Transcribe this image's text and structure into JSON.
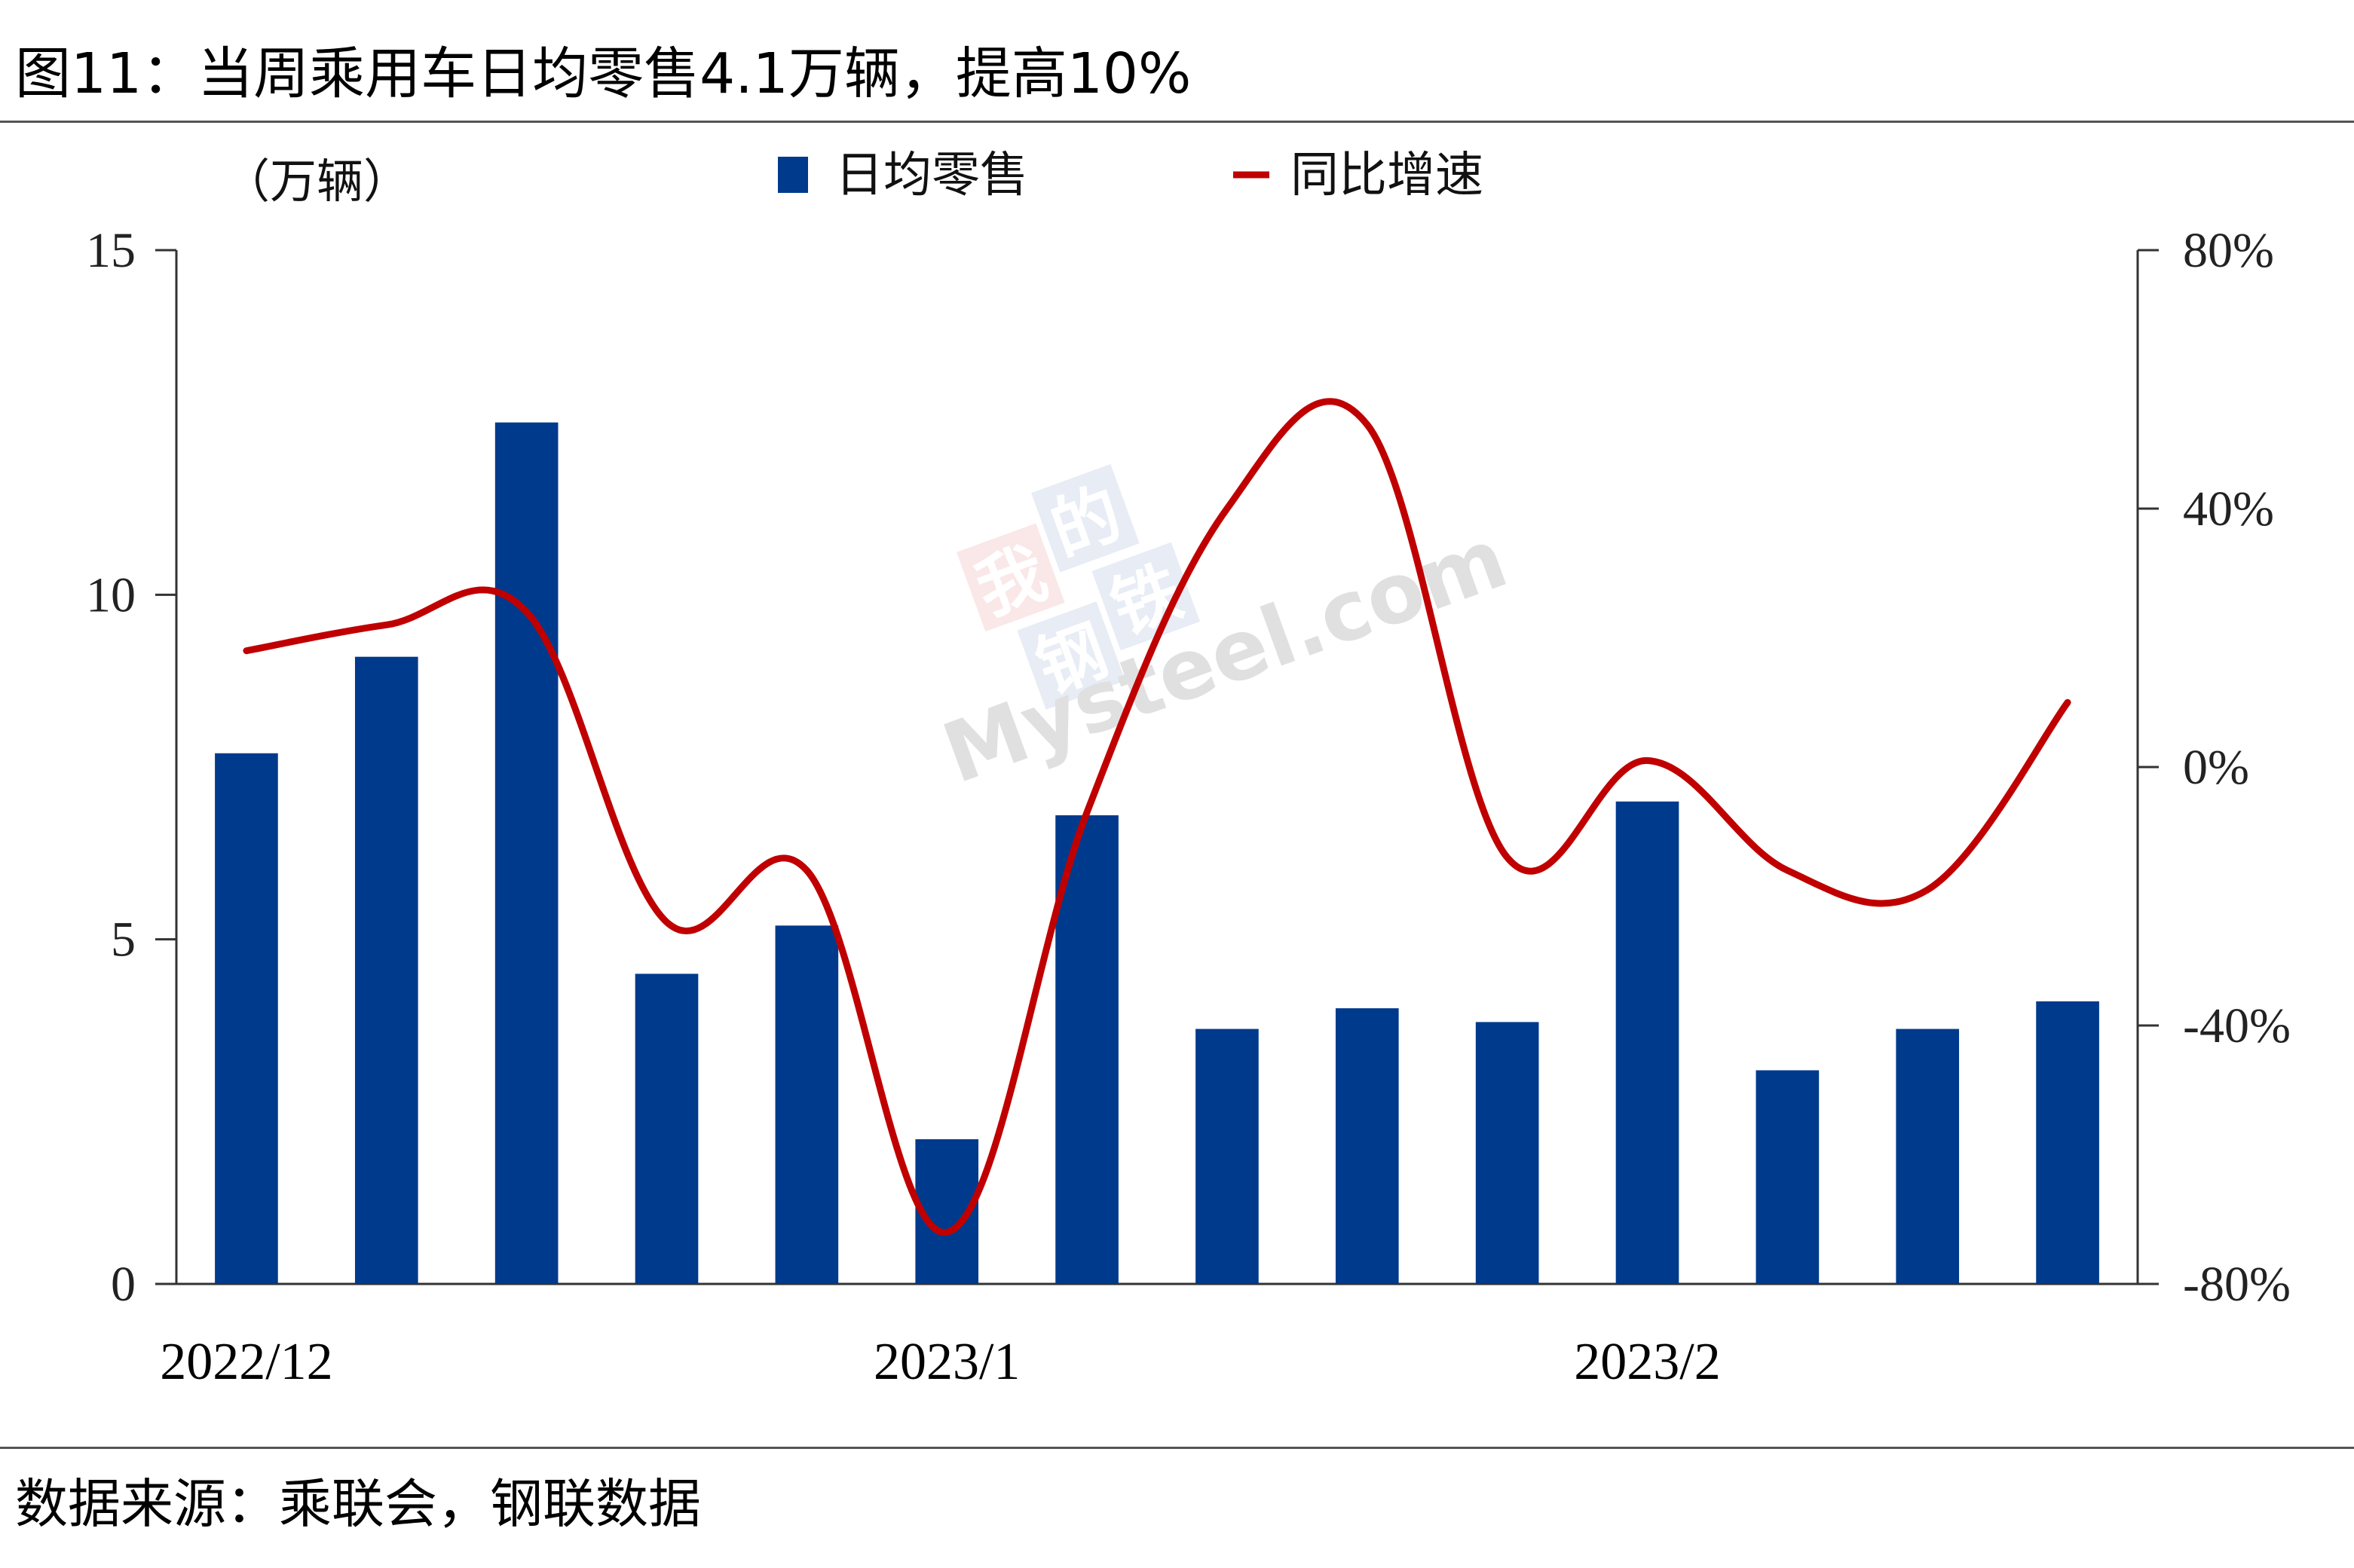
{
  "title": "图11：当周乘用车日均零售4.1万辆，提高10%",
  "source": "数据来源：乘联会，钢联数据",
  "watermark": {
    "chars": [
      "我",
      "的",
      "钢",
      "铁"
    ],
    "text": "Mysteel.com"
  },
  "chart_data": {
    "type": "bar",
    "y_unit_label": "（万辆）",
    "x_labels": [
      {
        "index": 0,
        "label": "2022/12"
      },
      {
        "index": 5,
        "label": "2023/1"
      },
      {
        "index": 10,
        "label": "2023/2"
      }
    ],
    "y_left": {
      "min": 0,
      "max": 15,
      "ticks": [
        "0",
        "5",
        "10",
        "15"
      ]
    },
    "y_right": {
      "min": -80,
      "max": 80,
      "ticks": [
        "-80%",
        "-40%",
        "0%",
        "40%",
        "80%"
      ]
    },
    "grid": false,
    "legend_position": "top",
    "series": [
      {
        "name": "日均零售",
        "type": "bar",
        "axis": "left",
        "color": "#003a8c",
        "values": [
          7.7,
          9.1,
          12.5,
          4.5,
          5.2,
          2.1,
          6.8,
          3.7,
          4.0,
          3.8,
          7.0,
          3.1,
          3.7,
          4.1
        ]
      },
      {
        "name": "同比增速",
        "type": "line",
        "axis": "right",
        "color": "#c00000",
        "values": [
          18,
          22,
          24,
          -24,
          -16,
          -72,
          -7,
          40,
          53,
          -14,
          1,
          -16,
          -19,
          10
        ]
      }
    ]
  }
}
